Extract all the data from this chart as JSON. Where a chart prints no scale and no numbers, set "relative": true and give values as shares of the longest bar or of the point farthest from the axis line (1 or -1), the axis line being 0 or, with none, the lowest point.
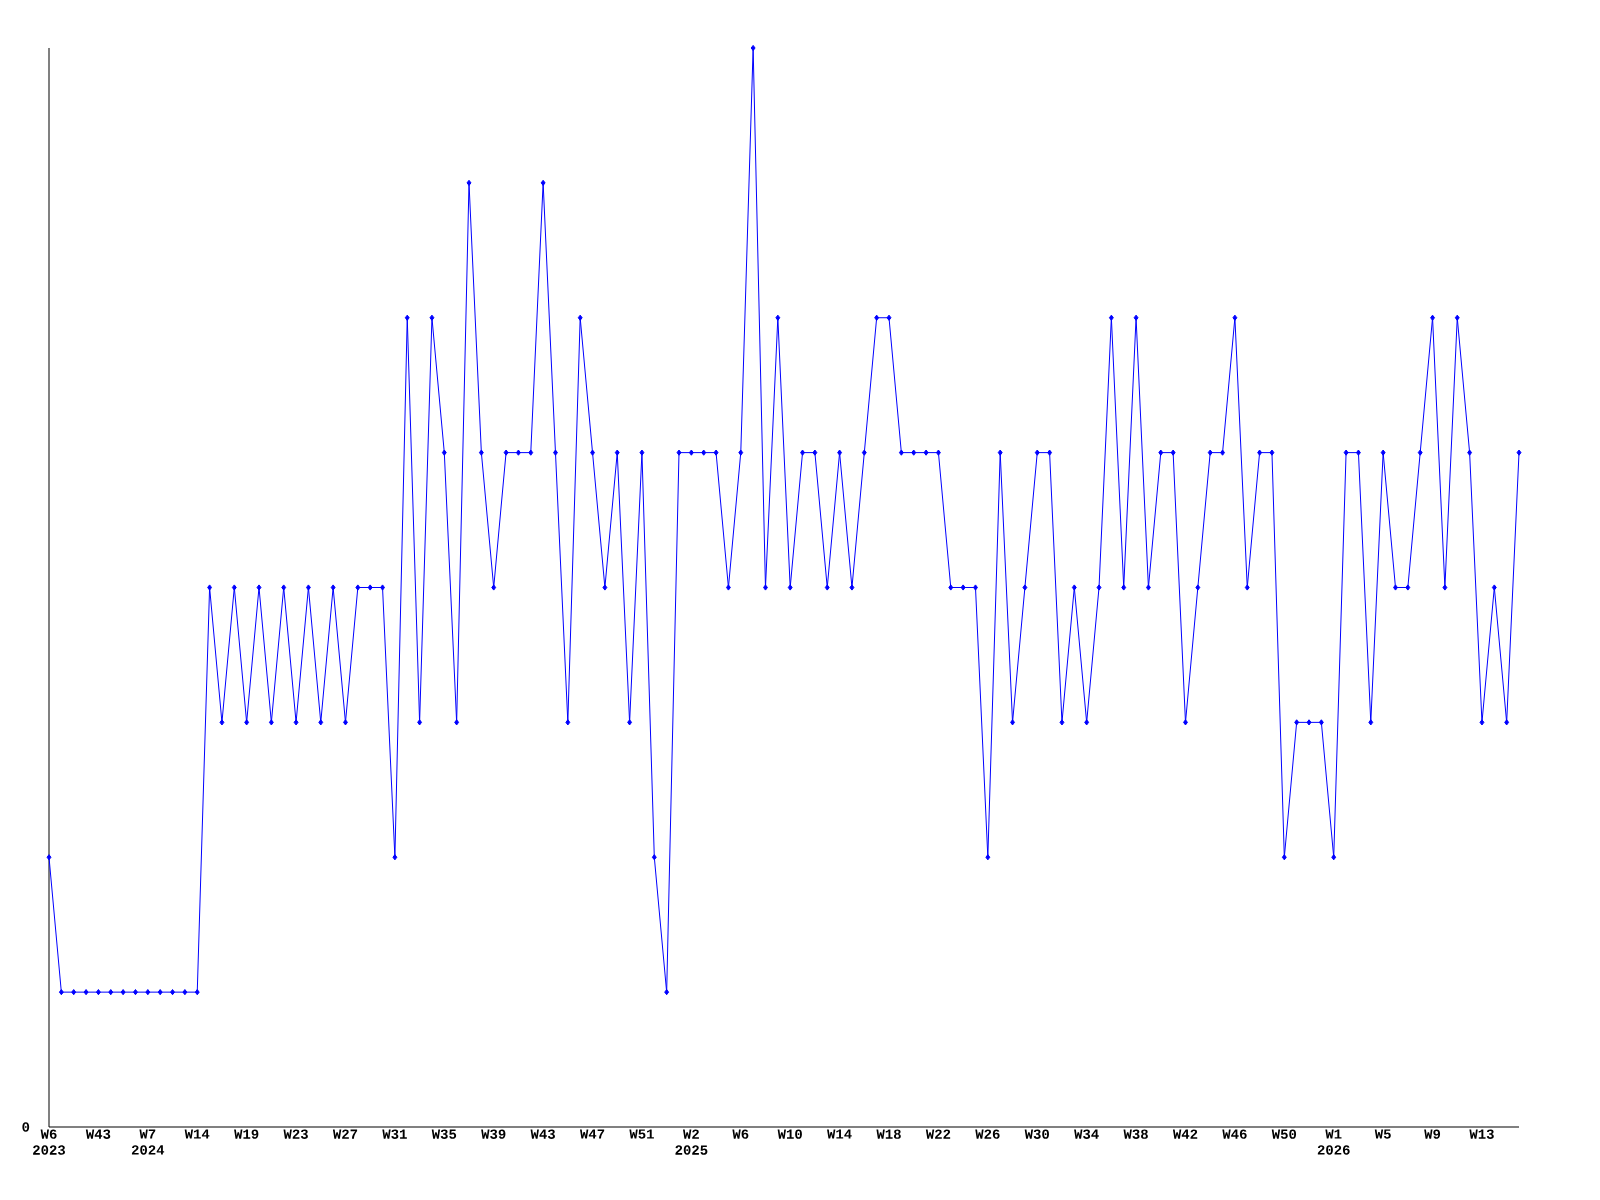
{
  "chart_data": {
    "type": "line",
    "relative": true,
    "color": "#0000ff",
    "marker": "diamond",
    "line_style": "solid",
    "annotations": [
      "0"
    ],
    "categories": [
      "W6 2023",
      null,
      null,
      null,
      "W43",
      null,
      null,
      null,
      "W7 2024",
      null,
      null,
      null,
      "W14",
      null,
      null,
      null,
      "W19",
      null,
      null,
      null,
      "W23",
      null,
      null,
      null,
      "W27",
      null,
      null,
      null,
      "W31",
      null,
      null,
      null,
      "W35",
      null,
      null,
      null,
      "W39",
      null,
      null,
      null,
      "W43",
      null,
      null,
      null,
      "W47",
      null,
      null,
      null,
      "W51",
      null,
      null,
      null,
      "W2 2025",
      null,
      null,
      null,
      "W6",
      null,
      null,
      null,
      "W10",
      null,
      null,
      null,
      "W14",
      null,
      null,
      null,
      "W18",
      null,
      null,
      null,
      "W22",
      null,
      null,
      null,
      "W26",
      null,
      null,
      null,
      "W30",
      null,
      null,
      null,
      "W34",
      null,
      null,
      null,
      "W38",
      null,
      null,
      null,
      "W42",
      null,
      null,
      null,
      "W46",
      null,
      null,
      null,
      "W50",
      null,
      null,
      null,
      "W1 2026",
      null,
      null,
      null,
      "W5",
      null,
      null,
      null,
      "W9",
      null,
      null,
      null,
      "W13",
      null,
      null,
      null
    ],
    "values": [
      0.25,
      0.125,
      0.125,
      0.125,
      0.125,
      0.125,
      0.125,
      0.125,
      0.125,
      0.125,
      0.125,
      0.125,
      0.125,
      0.5,
      0.375,
      0.5,
      0.375,
      0.5,
      0.375,
      0.5,
      0.375,
      0.5,
      0.375,
      0.5,
      0.375,
      0.5,
      0.5,
      0.5,
      0.25,
      0.75,
      0.375,
      0.75,
      0.625,
      0.375,
      0.875,
      0.625,
      0.5,
      0.625,
      0.625,
      0.625,
      0.875,
      0.625,
      0.375,
      0.75,
      0.625,
      0.5,
      0.625,
      0.375,
      0.625,
      0.25,
      0.125,
      0.625,
      0.625,
      0.625,
      0.625,
      0.5,
      0.625,
      1,
      0.5,
      0.75,
      0.5,
      0.625,
      0.625,
      0.5,
      0.625,
      0.5,
      0.625,
      0.75,
      0.75,
      0.625,
      0.625,
      0.625,
      0.625,
      0.5,
      0.5,
      0.5,
      0.25,
      0.625,
      0.375,
      0.5,
      0.625,
      0.625,
      0.375,
      0.5,
      0.375,
      0.5,
      0.75,
      0.5,
      0.75,
      0.5,
      0.625,
      0.625,
      0.375,
      0.5,
      0.625,
      0.625,
      0.75,
      0.5,
      0.625,
      0.625,
      0.25,
      0.375,
      0.375,
      0.375,
      0.25,
      0.625,
      0.625,
      0.375,
      0.625,
      0.5,
      0.5,
      0.625,
      0.75,
      0.5,
      0.75,
      0.625,
      0.375,
      0.5,
      0.375,
      0.625
    ]
  }
}
